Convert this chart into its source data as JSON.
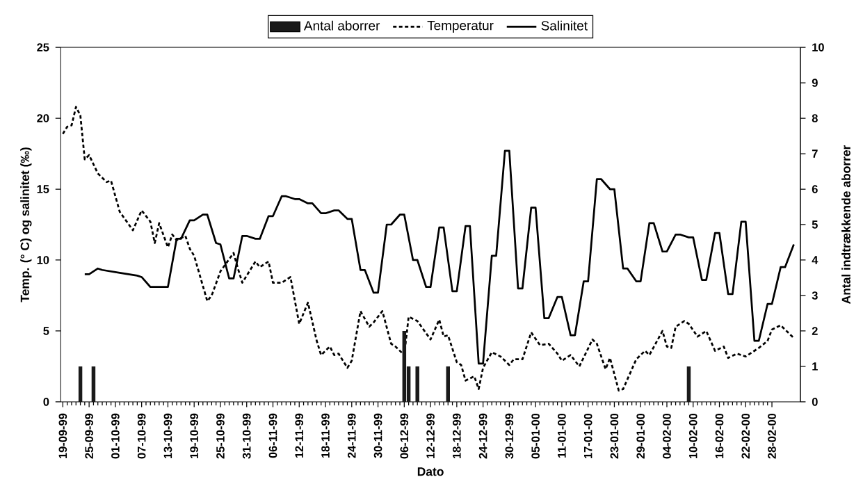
{
  "chart_data": {
    "type": "line",
    "xlabel": "Dato",
    "ylabel": "Temp. (° C) og salinitet (‰)",
    "y2label": "Antal indtrækkende aborrer",
    "legend": "top",
    "grid": false,
    "xlim": [
      "1999-09-18T12:00",
      "2000-03-05T12:00"
    ],
    "xticks": [
      {
        "value": "1999-09-19",
        "label": "19-09-99"
      },
      {
        "value": "1999-09-25",
        "label": "25-09-99"
      },
      {
        "value": "1999-10-01",
        "label": "01-10-99"
      },
      {
        "value": "1999-10-07",
        "label": "07-10-99"
      },
      {
        "value": "1999-10-13",
        "label": "13-10-99"
      },
      {
        "value": "1999-10-19",
        "label": "19-10-99"
      },
      {
        "value": "1999-10-25",
        "label": "25-10-99"
      },
      {
        "value": "1999-10-31",
        "label": "31-10-99"
      },
      {
        "value": "1999-11-06",
        "label": "06-11-99"
      },
      {
        "value": "1999-11-12",
        "label": "12-11-99"
      },
      {
        "value": "1999-11-18",
        "label": "18-11-99"
      },
      {
        "value": "1999-11-24",
        "label": "24-11-99"
      },
      {
        "value": "1999-11-30",
        "label": "30-11-99"
      },
      {
        "value": "1999-12-06",
        "label": "06-12-99"
      },
      {
        "value": "1999-12-12",
        "label": "12-12-99"
      },
      {
        "value": "1999-12-18",
        "label": "18-12-99"
      },
      {
        "value": "1999-12-24",
        "label": "24-12-99"
      },
      {
        "value": "1999-12-30",
        "label": "30-12-99"
      },
      {
        "value": "2000-01-05",
        "label": "05-01-00"
      },
      {
        "value": "2000-01-11",
        "label": "11-01-00"
      },
      {
        "value": "2000-01-17",
        "label": "17-01-00"
      },
      {
        "value": "2000-01-23",
        "label": "23-01-00"
      },
      {
        "value": "2000-01-29",
        "label": "29-01-00"
      },
      {
        "value": "2000-02-04",
        "label": "04-02-00"
      },
      {
        "value": "2000-02-10",
        "label": "10-02-00"
      },
      {
        "value": "2000-02-16",
        "label": "16-02-00"
      },
      {
        "value": "2000-02-22",
        "label": "22-02-00"
      },
      {
        "value": "2000-02-28",
        "label": "28-02-00"
      }
    ],
    "ylim": [
      0,
      25
    ],
    "yticks": [
      0,
      5,
      10,
      15,
      20,
      25
    ],
    "y2lim": [
      0,
      10
    ],
    "y2ticks": [
      0,
      1,
      2,
      3,
      4,
      5,
      6,
      7,
      8,
      9,
      10
    ],
    "series": [
      {
        "name": "Antal aborrer",
        "type": "bar",
        "axis": "y2",
        "color": "#1a1a1a",
        "x": [
          "1999-09-23",
          "1999-09-26",
          "1999-12-06",
          "1999-12-07",
          "1999-12-09",
          "1999-12-16",
          "2000-02-09"
        ],
        "values": [
          1,
          1,
          2,
          1,
          1,
          1,
          1
        ]
      },
      {
        "name": "Temperatur",
        "line_style": "dashed",
        "color": "#000000",
        "x": [
          "1999-09-19",
          "1999-09-20",
          "1999-09-21",
          "1999-09-22",
          "1999-09-23",
          "1999-09-24",
          "1999-09-25",
          "1999-09-27",
          "1999-09-29",
          "1999-09-30",
          "1999-10-02",
          "1999-10-05",
          "1999-10-07",
          "1999-10-09",
          "1999-10-10",
          "1999-10-11",
          "1999-10-13",
          "1999-10-14",
          "1999-10-15",
          "1999-10-17",
          "1999-10-18",
          "1999-10-19",
          "1999-10-22",
          "1999-10-23",
          "1999-10-25",
          "1999-10-28",
          "1999-10-29",
          "1999-10-30",
          "1999-10-31",
          "1999-11-02",
          "1999-11-03",
          "1999-11-05",
          "1999-11-06",
          "1999-11-08",
          "1999-11-10",
          "1999-11-12",
          "1999-11-14",
          "1999-11-16",
          "1999-11-17",
          "1999-11-19",
          "1999-11-20",
          "1999-11-21",
          "1999-11-23",
          "1999-11-24",
          "1999-11-26",
          "1999-11-28",
          "1999-11-29",
          "1999-12-01",
          "1999-12-03",
          "1999-12-04",
          "1999-12-06",
          "1999-12-07",
          "1999-12-09",
          "1999-12-12",
          "1999-12-14",
          "1999-12-15",
          "1999-12-16",
          "1999-12-18",
          "1999-12-19",
          "1999-12-20",
          "1999-12-22",
          "1999-12-23",
          "1999-12-24",
          "1999-12-26",
          "1999-12-28",
          "1999-12-30",
          "1999-12-31",
          "2000-01-02",
          "2000-01-04",
          "2000-01-06",
          "2000-01-08",
          "2000-01-10",
          "2000-01-11",
          "2000-01-13",
          "2000-01-15",
          "2000-01-18",
          "2000-01-19",
          "2000-01-21",
          "2000-01-22",
          "2000-01-24",
          "2000-01-25",
          "2000-01-28",
          "2000-01-30",
          "2000-01-31",
          "2000-02-03",
          "2000-02-04",
          "2000-02-05",
          "2000-02-06",
          "2000-02-08",
          "2000-02-09",
          "2000-02-11",
          "2000-02-13",
          "2000-02-15",
          "2000-02-17",
          "2000-02-18",
          "2000-02-20",
          "2000-02-22",
          "2000-02-25",
          "2000-02-27",
          "2000-02-28",
          "2000-03-01",
          "2000-03-03",
          "2000-03-04"
        ],
        "values": [
          18.9,
          19.4,
          19.5,
          20.8,
          20.2,
          17.1,
          17.4,
          16.1,
          15.5,
          15.6,
          13.4,
          12.1,
          13.5,
          12.7,
          11.2,
          12.6,
          10.9,
          11.8,
          11.4,
          11.7,
          10.8,
          10.3,
          7.1,
          7.5,
          9.2,
          10.5,
          9.4,
          8.4,
          8.9,
          9.9,
          9.5,
          9.9,
          8.4,
          8.4,
          8.8,
          5.5,
          7.0,
          4.3,
          3.3,
          3.9,
          3.3,
          3.4,
          2.4,
          2.9,
          6.4,
          5.3,
          5.6,
          6.4,
          4.1,
          3.9,
          3.3,
          6.0,
          5.7,
          4.4,
          5.8,
          4.6,
          4.7,
          2.8,
          2.6,
          1.5,
          1.8,
          0.9,
          2.4,
          3.5,
          3.2,
          2.6,
          3.0,
          3.0,
          4.9,
          4.0,
          4.1,
          3.4,
          2.9,
          3.3,
          2.5,
          4.4,
          4.1,
          2.3,
          3.1,
          0.8,
          0.9,
          3.0,
          3.6,
          3.3,
          5.0,
          3.9,
          3.8,
          5.3,
          5.7,
          5.5,
          4.6,
          5.0,
          3.6,
          3.9,
          3.1,
          3.4,
          3.2,
          3.8,
          4.3,
          5.1,
          5.4,
          4.8,
          4.5
        ]
      },
      {
        "name": "Salinitet",
        "line_style": "solid",
        "color": "#000000",
        "x": [
          "1999-09-24",
          "1999-09-25",
          "1999-09-27",
          "1999-09-28",
          "1999-09-30",
          "1999-10-02",
          "1999-10-04",
          "1999-10-06",
          "1999-10-07",
          "1999-10-09",
          "1999-10-11",
          "1999-10-13",
          "1999-10-15",
          "1999-10-16",
          "1999-10-18",
          "1999-10-19",
          "1999-10-21",
          "1999-10-22",
          "1999-10-24",
          "1999-10-25",
          "1999-10-27",
          "1999-10-28",
          "1999-10-30",
          "1999-10-31",
          "1999-11-02",
          "1999-11-03",
          "1999-11-05",
          "1999-11-06",
          "1999-11-08",
          "1999-11-09",
          "1999-11-11",
          "1999-11-12",
          "1999-11-14",
          "1999-11-15",
          "1999-11-17",
          "1999-11-18",
          "1999-11-20",
          "1999-11-21",
          "1999-11-23",
          "1999-11-24",
          "1999-11-26",
          "1999-11-27",
          "1999-11-29",
          "1999-11-30",
          "1999-12-02",
          "1999-12-03",
          "1999-12-05",
          "1999-12-06",
          "1999-12-08",
          "1999-12-09",
          "1999-12-11",
          "1999-12-12",
          "1999-12-14",
          "1999-12-15",
          "1999-12-17",
          "1999-12-18",
          "1999-12-20",
          "1999-12-21",
          "1999-12-23",
          "1999-12-24",
          "1999-12-26",
          "1999-12-27",
          "1999-12-29",
          "1999-12-30",
          "2000-01-01",
          "2000-01-02",
          "2000-01-04",
          "2000-01-05",
          "2000-01-07",
          "2000-01-08",
          "2000-01-10",
          "2000-01-11",
          "2000-01-13",
          "2000-01-14",
          "2000-01-16",
          "2000-01-17",
          "2000-01-19",
          "2000-01-20",
          "2000-01-22",
          "2000-01-23",
          "2000-01-25",
          "2000-01-26",
          "2000-01-28",
          "2000-01-29",
          "2000-01-31",
          "2000-02-01",
          "2000-02-03",
          "2000-02-04",
          "2000-02-06",
          "2000-02-07",
          "2000-02-09",
          "2000-02-10",
          "2000-02-12",
          "2000-02-13",
          "2000-02-15",
          "2000-02-16",
          "2000-02-18",
          "2000-02-19",
          "2000-02-21",
          "2000-02-22",
          "2000-02-24",
          "2000-02-25",
          "2000-02-27",
          "2000-02-28",
          "2000-03-01",
          "2000-03-02",
          "2000-03-04"
        ],
        "values": [
          9.0,
          9.0,
          9.4,
          9.3,
          9.2,
          9.1,
          9.0,
          8.9,
          8.8,
          8.1,
          8.1,
          8.1,
          11.5,
          11.5,
          12.8,
          12.8,
          13.2,
          13.2,
          11.2,
          11.1,
          8.7,
          8.7,
          11.7,
          11.7,
          11.5,
          11.5,
          13.1,
          13.1,
          14.5,
          14.5,
          14.3,
          14.3,
          14.0,
          14.0,
          13.3,
          13.3,
          13.5,
          13.5,
          12.9,
          12.9,
          9.3,
          9.3,
          7.7,
          7.7,
          12.5,
          12.5,
          13.2,
          13.2,
          10.0,
          10.0,
          8.1,
          8.1,
          12.3,
          12.3,
          7.8,
          7.8,
          12.4,
          12.4,
          2.7,
          2.7,
          10.3,
          10.3,
          17.7,
          17.7,
          8.0,
          8.0,
          13.7,
          13.7,
          5.9,
          5.9,
          7.4,
          7.4,
          4.7,
          4.7,
          8.5,
          8.5,
          15.7,
          15.7,
          15.0,
          15.0,
          9.4,
          9.4,
          8.5,
          8.5,
          12.6,
          12.6,
          10.6,
          10.6,
          11.8,
          11.8,
          11.6,
          11.6,
          8.6,
          8.6,
          11.9,
          11.9,
          7.6,
          7.6,
          12.7,
          12.7,
          4.3,
          4.3,
          6.9,
          6.9,
          9.5,
          9.5,
          11.1
        ]
      }
    ]
  }
}
